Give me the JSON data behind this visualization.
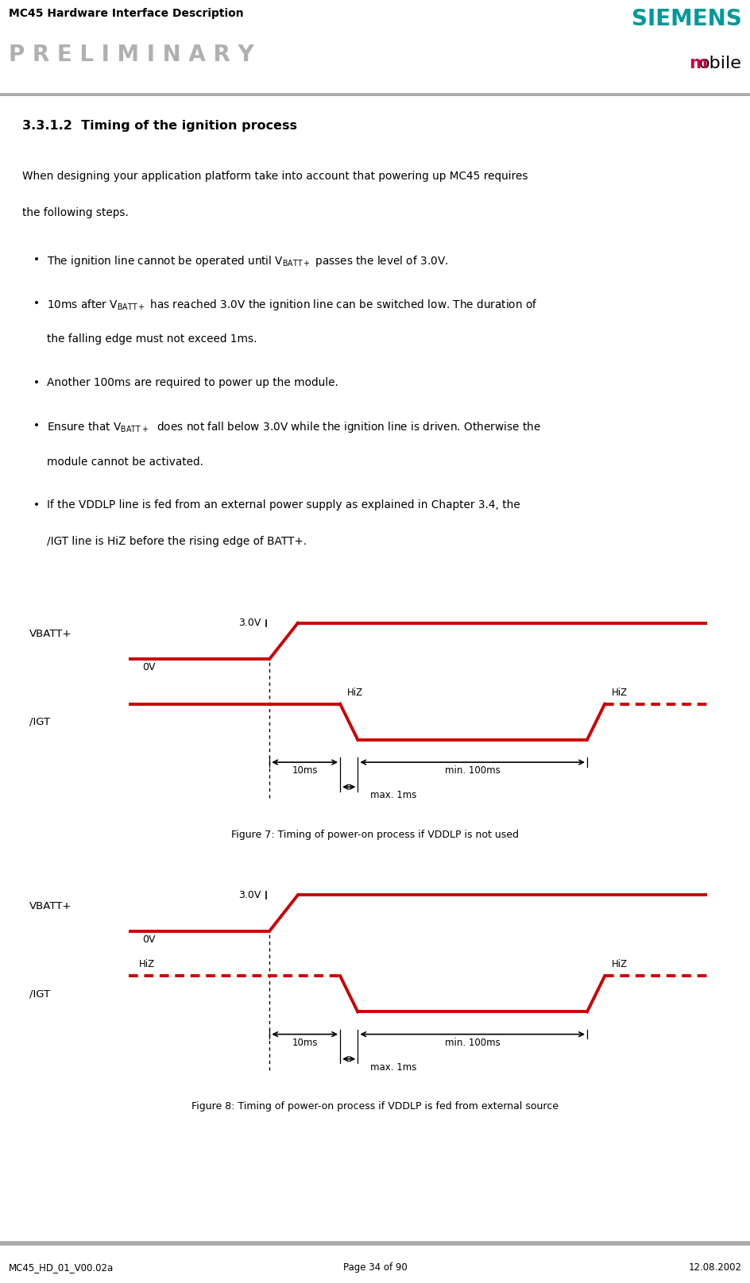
{
  "title_line1": "MC45 Hardware Interface Description",
  "title_line2": "P R E L I M I N A R Y",
  "siemens_text": "SIEMENS",
  "mobile_text": "mobile",
  "section_title": "3.3.1.2  Timing of the ignition process",
  "fig7_caption": "Figure 7: Timing of power-on process if VDDLP is not used",
  "fig8_caption": "Figure 8: Timing of power-on process if VDDLP is fed from external source",
  "footer_left": "MC45_HD_01_V00.02a",
  "footer_center": "Page 34 of 90",
  "footer_right": "12.08.2002",
  "red_color": "#cc0000",
  "bg_diagram": "#ebebeb",
  "bg_white": "#ffffff",
  "header_line_color": "#aaaaaa",
  "watermark_color": "#cccccc",
  "siemens_color": "#009999",
  "mobile_m_color": "#cc0044",
  "bullets": [
    [
      "The ignition line cannot be operated until V$_{\\mathsf{BATT+}}$ passes the level of 3.0V."
    ],
    [
      "10ms after V$_{\\mathsf{BATT+}}$ has reached 3.0V the ignition line can be switched low. The duration of",
      "the falling edge must not exceed 1ms."
    ],
    [
      "Another 100ms are required to power up the module."
    ],
    [
      "Ensure that V$_{\\mathsf{BATT+}}$  does not fall below 3.0V while the ignition line is driven. Otherwise the",
      "module cannot be activated."
    ],
    [
      "If the VDDLP line is fed from an external power supply as explained in Chapter 3.4, the",
      "/IGT line is HiZ before the rising edge of BATT+."
    ]
  ]
}
